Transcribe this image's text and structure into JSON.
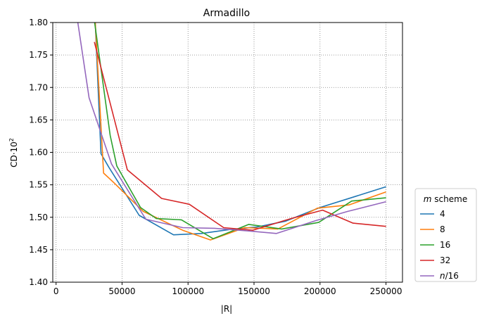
{
  "chart_data": {
    "type": "line",
    "title": "Armadillo",
    "xlabel": "|R|",
    "ylabel": "CD·10",
    "ylabel_sup": "2",
    "xlim": [
      -2500,
      262500
    ],
    "ylim": [
      1.4,
      1.8
    ],
    "xticks": [
      0,
      50000,
      100000,
      150000,
      200000,
      250000
    ],
    "yticks": [
      1.4,
      1.45,
      1.5,
      1.55,
      1.6,
      1.65,
      1.7,
      1.75,
      1.8
    ],
    "ytick_labels": [
      "1.40",
      "1.45",
      "1.50",
      "1.55",
      "1.60",
      "1.65",
      "1.70",
      "1.75",
      "1.80"
    ],
    "grid": true,
    "legend": {
      "title_italic": "m",
      "title_rest": " scheme",
      "placement": "outside-bottom-right"
    },
    "series": [
      {
        "name": "4",
        "color": "#1f77b4",
        "points": [
          [
            27500,
            1.9
          ],
          [
            34000,
            1.598
          ],
          [
            40000,
            1.577
          ],
          [
            63000,
            1.503
          ],
          [
            89000,
            1.473
          ],
          [
            110000,
            1.475
          ],
          [
            131000,
            1.481
          ],
          [
            152000,
            1.485
          ],
          [
            174000,
            1.494
          ],
          [
            200000,
            1.515
          ],
          [
            225000,
            1.531
          ],
          [
            250000,
            1.547
          ]
        ]
      },
      {
        "name": "8",
        "color": "#ff7f0e",
        "points": [
          [
            27000,
            1.9
          ],
          [
            36000,
            1.568
          ],
          [
            44000,
            1.553
          ],
          [
            66000,
            1.509
          ],
          [
            96000,
            1.48
          ],
          [
            117000,
            1.465
          ],
          [
            143000,
            1.484
          ],
          [
            168000,
            1.482
          ],
          [
            198000,
            1.514
          ],
          [
            222000,
            1.519
          ],
          [
            250000,
            1.539
          ]
        ]
      },
      {
        "name": "16",
        "color": "#2ca02c",
        "points": [
          [
            26500,
            1.84
          ],
          [
            41000,
            1.626
          ],
          [
            46000,
            1.579
          ],
          [
            64000,
            1.515
          ],
          [
            76000,
            1.498
          ],
          [
            95000,
            1.496
          ],
          [
            119000,
            1.467
          ],
          [
            146000,
            1.489
          ],
          [
            171000,
            1.482
          ],
          [
            199000,
            1.492
          ],
          [
            224000,
            1.525
          ],
          [
            250000,
            1.53
          ]
        ]
      },
      {
        "name": "32",
        "color": "#d62728",
        "points": [
          [
            29000,
            1.77
          ],
          [
            54000,
            1.573
          ],
          [
            80000,
            1.529
          ],
          [
            101000,
            1.52
          ],
          [
            127000,
            1.484
          ],
          [
            149000,
            1.48
          ],
          [
            178000,
            1.498
          ],
          [
            202000,
            1.511
          ],
          [
            225000,
            1.491
          ],
          [
            250000,
            1.486
          ]
        ]
      },
      {
        "name": "n/16",
        "name_italic": "n",
        "name_rest": "/16",
        "color": "#9467bd",
        "points": [
          [
            16500,
            1.8
          ],
          [
            25000,
            1.684
          ],
          [
            42000,
            1.582
          ],
          [
            68000,
            1.497
          ],
          [
            96000,
            1.484
          ],
          [
            120000,
            1.483
          ],
          [
            145000,
            1.479
          ],
          [
            167000,
            1.475
          ],
          [
            197000,
            1.495
          ],
          [
            221000,
            1.509
          ],
          [
            250000,
            1.524
          ]
        ]
      }
    ]
  }
}
